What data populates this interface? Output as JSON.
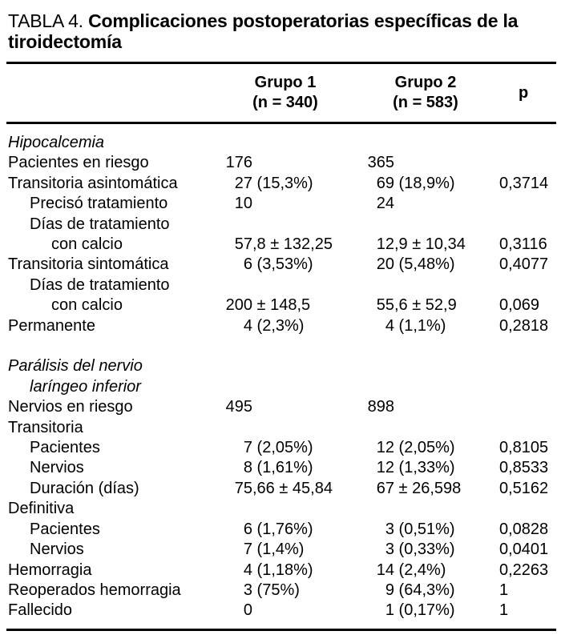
{
  "title": {
    "prefix": "TABLA 4.",
    "bold_text": "Complicaciones postoperatorias específicas de la tiroidectomía"
  },
  "header": {
    "group1_line1": "Grupo 1",
    "group1_line2": "(n = 340)",
    "group2_line1": "Grupo 2",
    "group2_line2": "(n = 583)",
    "p_label": "p"
  },
  "colors": {
    "text": "#000000",
    "background": "#ffffff",
    "rule": "#000000"
  },
  "rows": [
    {
      "label": "Hipocalcemia",
      "indent": 0,
      "italic": true,
      "g1": "",
      "g2": "",
      "p": ""
    },
    {
      "label": "Pacientes en riesgo",
      "indent": 0,
      "italic": false,
      "g1": "176",
      "g2": "365",
      "p": ""
    },
    {
      "label": "Transitoria asintomática",
      "indent": 0,
      "italic": false,
      "g1": "27 (15,3%)",
      "g2": "69 (18,9%)",
      "p": "0,3714"
    },
    {
      "label": "Precisó tratamiento",
      "indent": 1,
      "italic": false,
      "g1": "10",
      "g2": "24",
      "p": ""
    },
    {
      "label": "Días de tratamiento",
      "indent": 1,
      "italic": false,
      "g1": "",
      "g2": "",
      "p": ""
    },
    {
      "label": "con calcio",
      "indent": 2,
      "italic": false,
      "g1": "57,8 ± 132,25",
      "g2": "12,9 ± 10,34",
      "p": "0,3116"
    },
    {
      "label": "Transitoria sintomática",
      "indent": 0,
      "italic": false,
      "g1": "6 (3,53%)",
      "g2": "20 (5,48%)",
      "p": "0,4077"
    },
    {
      "label": "Días de tratamiento",
      "indent": 1,
      "italic": false,
      "g1": "",
      "g2": "",
      "p": ""
    },
    {
      "label": "con calcio",
      "indent": 2,
      "italic": false,
      "g1": "200 ± 148,5",
      "g2": "55,6 ± 52,9",
      "p": "0,069"
    },
    {
      "label": "Permanente",
      "indent": 0,
      "italic": false,
      "g1": "4 (2,3%)",
      "g2": "4 (1,1%)",
      "p": "0,2818"
    },
    {
      "spacer": true
    },
    {
      "label": "Parálisis del nervio",
      "indent": 0,
      "italic": true,
      "g1": "",
      "g2": "",
      "p": ""
    },
    {
      "label": "laríngeo inferior",
      "indent": 1,
      "italic": true,
      "g1": "",
      "g2": "",
      "p": ""
    },
    {
      "label": "Nervios en riesgo",
      "indent": 0,
      "italic": false,
      "g1": "495",
      "g2": "898",
      "p": ""
    },
    {
      "label": "Transitoria",
      "indent": 0,
      "italic": false,
      "g1": "",
      "g2": "",
      "p": ""
    },
    {
      "label": "Pacientes",
      "indent": 1,
      "italic": false,
      "g1": "7 (2,05%)",
      "g2": "12 (2,05%)",
      "p": "0,8105"
    },
    {
      "label": "Nervios",
      "indent": 1,
      "italic": false,
      "g1": "8 (1,61%)",
      "g2": "12 (1,33%)",
      "p": "0,8533"
    },
    {
      "label": "Duración (días)",
      "indent": 1,
      "italic": false,
      "g1": "75,66 ± 45,84",
      "g2": "67 ± 26,598",
      "p": "0,5162"
    },
    {
      "label": "Definitiva",
      "indent": 0,
      "italic": false,
      "g1": "",
      "g2": "",
      "p": ""
    },
    {
      "label": "Pacientes",
      "indent": 1,
      "italic": false,
      "g1": "6 (1,76%)",
      "g2": "3 (0,51%)",
      "p": "0,0828"
    },
    {
      "label": "Nervios",
      "indent": 1,
      "italic": false,
      "g1": "7 (1,4%)",
      "g2": "3 (0,33%)",
      "p": "0,0401"
    },
    {
      "label": "Hemorragia",
      "indent": 0,
      "italic": false,
      "g1": "4 (1,18%)",
      "g2": "14 (2,4%)",
      "p": "0,2263"
    },
    {
      "label": "Reoperados hemorragia",
      "indent": 0,
      "italic": false,
      "g1": "3 (75%)",
      "g2": "9 (64,3%)",
      "p": "1"
    },
    {
      "label": "Fallecido",
      "indent": 0,
      "italic": false,
      "g1": "0",
      "g2": "1 (0,17%)",
      "p": "1"
    }
  ]
}
